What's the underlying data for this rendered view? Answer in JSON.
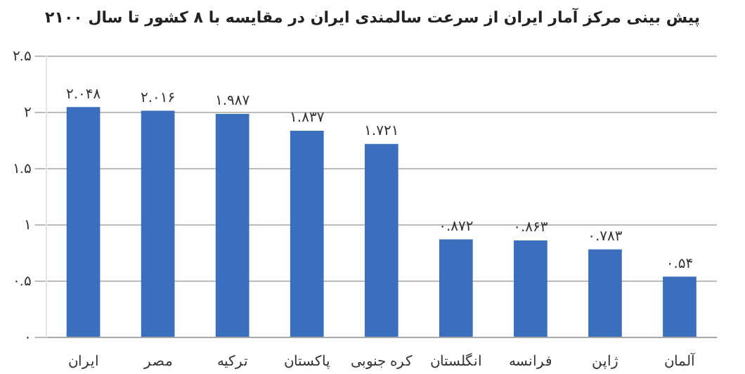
{
  "chart_data": {
    "type": "bar",
    "title": "پیش بینی مرکز آمار ایران از سرعت سالمندی ایران  در مقایسه با ۸ کشور تا سال ۲۱۰۰",
    "categories": [
      "ایران",
      "مصر",
      "ترکیه",
      "پاکستان",
      "کره جنوبی",
      "انگلستان",
      "فرانسه",
      "ژاپن",
      "آلمان"
    ],
    "values": [
      2.048,
      2.016,
      1.987,
      1.837,
      1.721,
      0.872,
      0.863,
      0.783,
      0.54
    ],
    "value_labels": [
      "۲.۰۴۸",
      "۲.۰۱۶",
      "۱.۹۸۷",
      "۱.۸۳۷",
      "۱.۷۲۱",
      "۰.۸۷۲",
      "۰.۸۶۳",
      "۰.۷۸۳",
      "۰.۵۴"
    ],
    "color": "#3b6fbd",
    "ylim": [
      0,
      2.5
    ],
    "yticks": [
      {
        "value": 0,
        "label": "۰"
      },
      {
        "value": 0.5,
        "label": "۰.۵"
      },
      {
        "value": 1,
        "label": "۱"
      },
      {
        "value": 1.5,
        "label": "۱.۵"
      },
      {
        "value": 2,
        "label": "۲"
      },
      {
        "value": 2.5,
        "label": "۲.۵"
      }
    ],
    "grid": "y"
  }
}
